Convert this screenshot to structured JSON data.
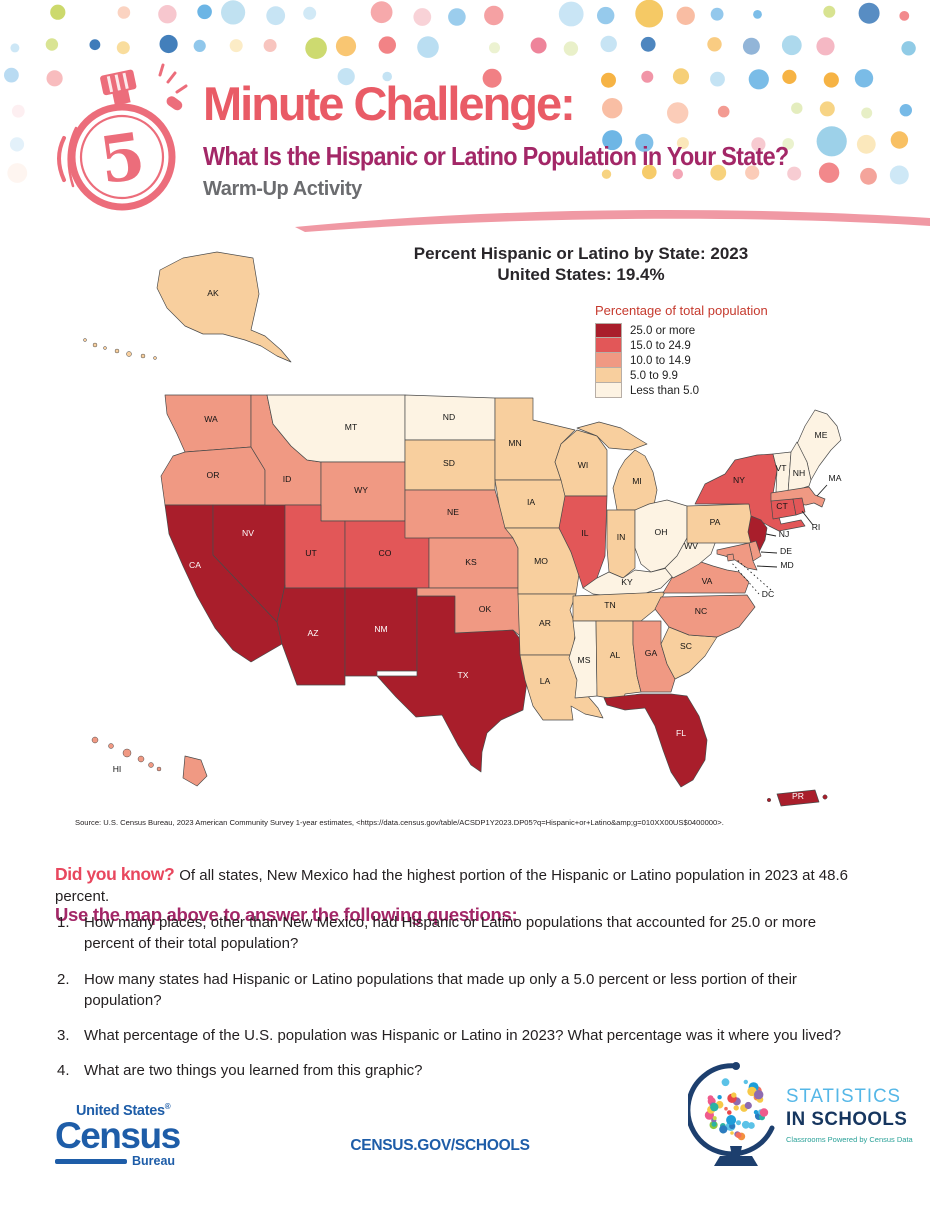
{
  "header": {
    "timer_number": "5",
    "title": "Minute Challenge:",
    "subtitle": "What Is the Hispanic or Latino Population in Your State?",
    "activity_label": "Warm-Up Activity"
  },
  "chart_data": {
    "type": "choropleth",
    "title": "Percent Hispanic or Latino by State: 2023",
    "subtitle": "United States: 19.4%",
    "us_value_percent": 19.4,
    "legend_title": "Percentage of total population",
    "legend_position": "upper right",
    "classes": [
      {
        "label": "25.0 or more",
        "color": "#a91e2b"
      },
      {
        "label": "15.0 to 24.9",
        "color": "#e25758"
      },
      {
        "label": "10.0 to 14.9",
        "color": "#f09983"
      },
      {
        "label": "5.0 to 9.9",
        "color": "#f8cf9e"
      },
      {
        "label": "Less than 5.0",
        "color": "#fdf3e3"
      }
    ],
    "states": [
      {
        "abbr": "AK",
        "class": "5.0 to 9.9"
      },
      {
        "abbr": "AL",
        "class": "5.0 to 9.9"
      },
      {
        "abbr": "AR",
        "class": "5.0 to 9.9"
      },
      {
        "abbr": "AZ",
        "class": "25.0 or more"
      },
      {
        "abbr": "CA",
        "class": "25.0 or more"
      },
      {
        "abbr": "CO",
        "class": "15.0 to 24.9"
      },
      {
        "abbr": "CT",
        "class": "15.0 to 24.9"
      },
      {
        "abbr": "DC",
        "class": "10.0 to 14.9"
      },
      {
        "abbr": "DE",
        "class": "10.0 to 14.9"
      },
      {
        "abbr": "FL",
        "class": "25.0 or more"
      },
      {
        "abbr": "GA",
        "class": "10.0 to 14.9"
      },
      {
        "abbr": "HI",
        "class": "10.0 to 14.9"
      },
      {
        "abbr": "IA",
        "class": "5.0 to 9.9"
      },
      {
        "abbr": "ID",
        "class": "10.0 to 14.9"
      },
      {
        "abbr": "IL",
        "class": "15.0 to 24.9"
      },
      {
        "abbr": "IN",
        "class": "5.0 to 9.9"
      },
      {
        "abbr": "KS",
        "class": "10.0 to 14.9"
      },
      {
        "abbr": "KY",
        "class": "Less than 5.0"
      },
      {
        "abbr": "LA",
        "class": "5.0 to 9.9"
      },
      {
        "abbr": "MA",
        "class": "10.0 to 14.9"
      },
      {
        "abbr": "MD",
        "class": "10.0 to 14.9"
      },
      {
        "abbr": "ME",
        "class": "Less than 5.0"
      },
      {
        "abbr": "MI",
        "class": "5.0 to 9.9"
      },
      {
        "abbr": "MN",
        "class": "5.0 to 9.9"
      },
      {
        "abbr": "MO",
        "class": "5.0 to 9.9"
      },
      {
        "abbr": "MS",
        "class": "Less than 5.0"
      },
      {
        "abbr": "MT",
        "class": "Less than 5.0"
      },
      {
        "abbr": "NC",
        "class": "10.0 to 14.9"
      },
      {
        "abbr": "ND",
        "class": "Less than 5.0"
      },
      {
        "abbr": "NE",
        "class": "10.0 to 14.9"
      },
      {
        "abbr": "NH",
        "class": "Less than 5.0"
      },
      {
        "abbr": "NJ",
        "class": "25.0 or more"
      },
      {
        "abbr": "NM",
        "class": "25.0 or more"
      },
      {
        "abbr": "NV",
        "class": "25.0 or more"
      },
      {
        "abbr": "NY",
        "class": "15.0 to 24.9"
      },
      {
        "abbr": "OH",
        "class": "Less than 5.0"
      },
      {
        "abbr": "OK",
        "class": "10.0 to 14.9"
      },
      {
        "abbr": "OR",
        "class": "10.0 to 14.9"
      },
      {
        "abbr": "PA",
        "class": "5.0 to 9.9"
      },
      {
        "abbr": "RI",
        "class": "15.0 to 24.9"
      },
      {
        "abbr": "SC",
        "class": "5.0 to 9.9"
      },
      {
        "abbr": "SD",
        "class": "5.0 to 9.9"
      },
      {
        "abbr": "TN",
        "class": "5.0 to 9.9"
      },
      {
        "abbr": "TX",
        "class": "25.0 or more"
      },
      {
        "abbr": "UT",
        "class": "15.0 to 24.9"
      },
      {
        "abbr": "VA",
        "class": "10.0 to 14.9"
      },
      {
        "abbr": "VT",
        "class": "Less than 5.0"
      },
      {
        "abbr": "WA",
        "class": "10.0 to 14.9"
      },
      {
        "abbr": "WI",
        "class": "5.0 to 9.9"
      },
      {
        "abbr": "WV",
        "class": "Less than 5.0"
      },
      {
        "abbr": "WY",
        "class": "10.0 to 14.9"
      },
      {
        "abbr": "PR",
        "class": "25.0 or more"
      }
    ],
    "source": "Source: U.S. Census Bureau, 2023 American Community Survey 1-year estimates, <https://data.census.gov/table/ACSDP1Y2023.DP05?q=Hispanic+or+Latino&amp;g=010XX00US$0400000>."
  },
  "did_you_know": {
    "label": "Did you know?",
    "text": "Of all states, New Mexico had the highest portion of the Hispanic or Latino population in 2023 at 48.6 percent."
  },
  "questions": {
    "heading": "Use the map above to answer the following questions:",
    "items": [
      "How many places, other than New Mexico, had Hispanic or Latino populations that accounted for 25.0 or more percent of their total population?",
      "How many states had Hispanic or Latino populations that made up only a 5.0 percent or less portion of their population?",
      "What percentage of the U.S. population was Hispanic or Latino in 2023? What percentage was it where you lived?",
      "What are two things you learned from this graphic?"
    ]
  },
  "footer": {
    "census_logo": {
      "line1": "United States",
      "reg": "®",
      "word": "Census",
      "sub": "Bureau"
    },
    "site": "CENSUS.GOV/SCHOOLS",
    "sis": {
      "line1": "STATISTICS",
      "line2": "IN SCHOOLS",
      "tagline": "Classrooms Powered by Census Data"
    }
  },
  "theme": {
    "title_red": "#e95b66",
    "subtitle_magenta": "#a32767",
    "warmup_gray": "#6b6c6f",
    "legend_title_red": "#c63a2e",
    "did_you_know_red": "#e8475e",
    "census_blue": "#1e5da8",
    "sis_light_blue": "#55b7e7",
    "sis_navy": "#16365f",
    "sis_teal": "#2aa198"
  }
}
